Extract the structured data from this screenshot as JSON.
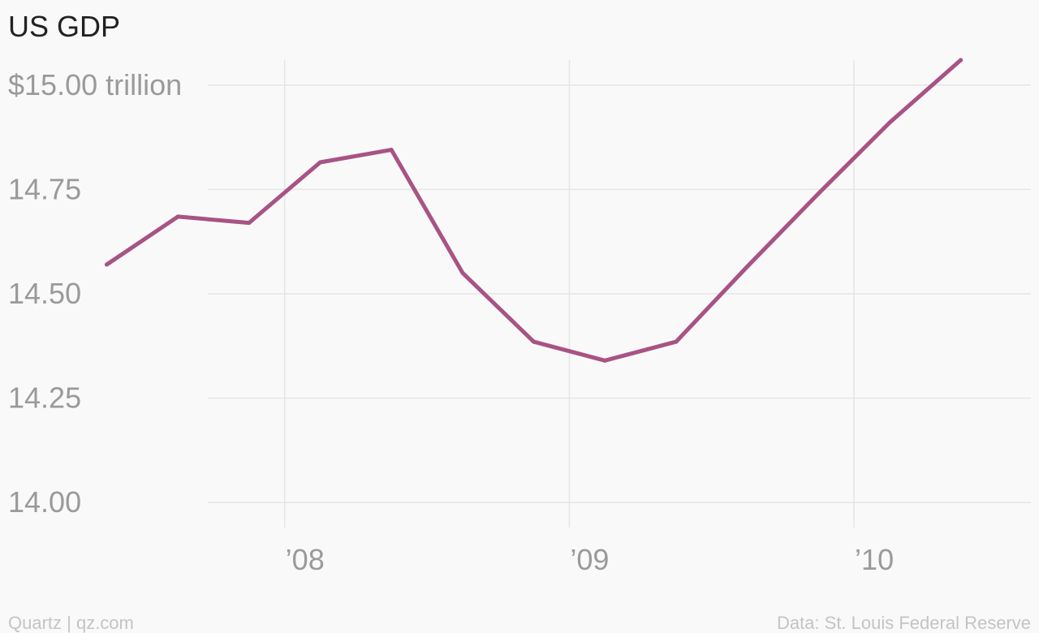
{
  "chart_data": {
    "type": "line",
    "title": "US GDP",
    "xlabel": "",
    "ylabel": "",
    "x": [
      2007.375,
      2007.625,
      2007.875,
      2008.125,
      2008.375,
      2008.625,
      2008.875,
      2009.125,
      2009.375,
      2009.625,
      2009.875,
      2010.125,
      2010.375
    ],
    "series": [
      {
        "values": [
          14.57,
          14.685,
          14.67,
          14.815,
          14.845,
          14.55,
          14.385,
          14.34,
          14.385,
          14.565,
          14.74,
          14.91,
          15.06
        ]
      }
    ],
    "xlim": [
      2007.0,
      2010.65
    ],
    "ylim": [
      13.94,
      15.06
    ],
    "x_ticks": [
      2008,
      2009,
      2010
    ],
    "x_tick_labels": [
      "’08",
      "’09",
      "’10"
    ],
    "y_ticks": [
      14.0,
      14.25,
      14.5,
      14.75,
      15.0
    ],
    "y_tick_labels": [
      "14.00",
      "14.25",
      "14.50",
      "14.75",
      "$15.00 trillion"
    ],
    "grid": true,
    "line_color": "#a85385"
  },
  "footer": {
    "left": "Quartz | qz.com",
    "right": "Data: St. Louis Federal Reserve"
  }
}
